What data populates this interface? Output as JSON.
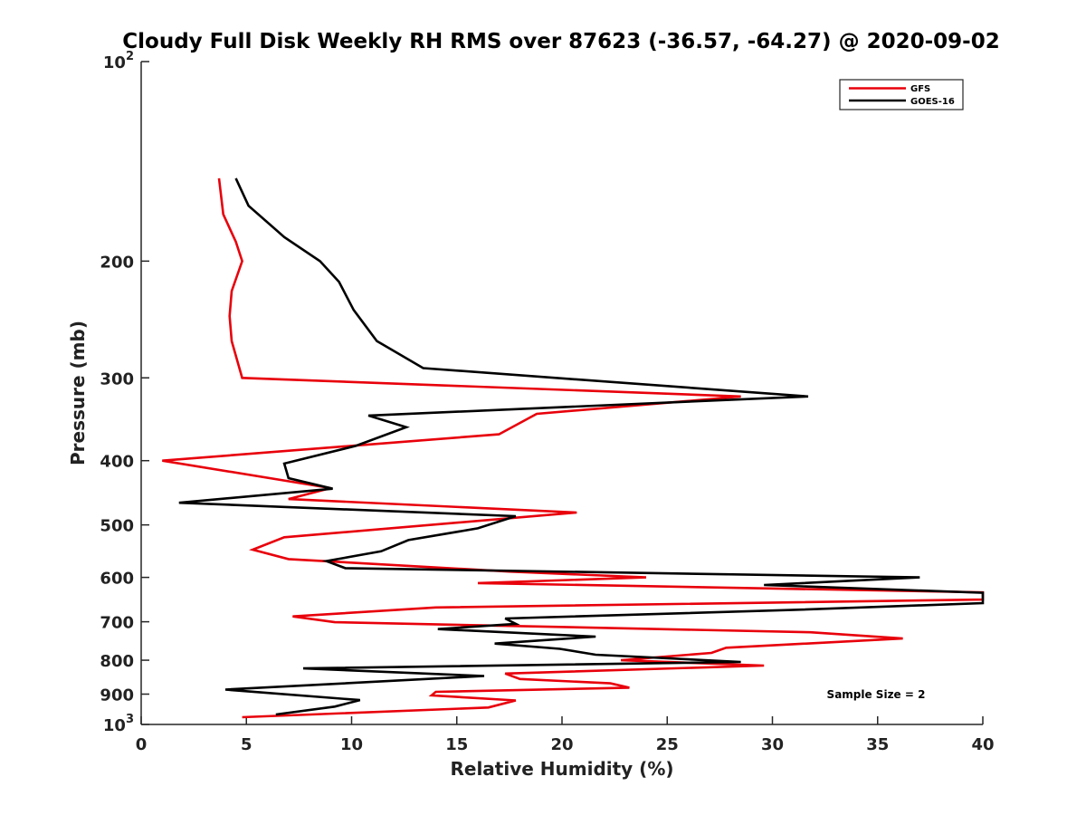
{
  "chart_data": {
    "type": "line",
    "title": "Cloudy Full Disk Weekly RH RMS over 87623 (-36.57, -64.27) @ 2020-09-02",
    "xlabel": "Relative Humidity (%)",
    "ylabel": "Pressure (mb)",
    "xlim": [
      0,
      40
    ],
    "ylim": [
      100,
      1000
    ],
    "y_scale": "log",
    "y_reversed": true,
    "grid": false,
    "legend_position": "top-right",
    "x_ticks": [
      0,
      5,
      10,
      15,
      20,
      25,
      30,
      35,
      40
    ],
    "x_tick_labels": [
      "0",
      "5",
      "10",
      "15",
      "20",
      "25",
      "30",
      "35",
      "40"
    ],
    "y_ticks": [
      100,
      200,
      300,
      400,
      500,
      600,
      700,
      800,
      900,
      1000
    ],
    "y_tick_labels": [
      {
        "base": "10",
        "exp": "2"
      },
      {
        "base": "200",
        "exp": ""
      },
      {
        "base": "300",
        "exp": ""
      },
      {
        "base": "400",
        "exp": ""
      },
      {
        "base": "500",
        "exp": ""
      },
      {
        "base": "600",
        "exp": ""
      },
      {
        "base": "700",
        "exp": ""
      },
      {
        "base": "800",
        "exp": ""
      },
      {
        "base": "900",
        "exp": ""
      },
      {
        "base": "10",
        "exp": "3"
      }
    ],
    "annotation": "Sample Size = 2",
    "series": [
      {
        "name": "GFS",
        "color": "#e8000b",
        "points": [
          [
            3.7,
            150
          ],
          [
            3.9,
            170
          ],
          [
            4.5,
            187
          ],
          [
            4.8,
            200
          ],
          [
            4.3,
            222
          ],
          [
            4.2,
            242
          ],
          [
            4.3,
            264
          ],
          [
            4.8,
            300
          ],
          [
            28.5,
            320
          ],
          [
            18.8,
            340
          ],
          [
            17.0,
            365
          ],
          [
            1.0,
            400
          ],
          [
            9.0,
            440
          ],
          [
            7.0,
            457
          ],
          [
            20.7,
            479
          ],
          [
            6.8,
            522
          ],
          [
            5.3,
            545
          ],
          [
            7.0,
            563
          ],
          [
            17.5,
            588
          ],
          [
            24.0,
            600
          ],
          [
            16.0,
            612
          ],
          [
            40.0,
            632
          ],
          [
            40.0,
            648
          ],
          [
            14.0,
            666
          ],
          [
            7.2,
            687
          ],
          [
            9.2,
            701
          ],
          [
            31.8,
            726
          ],
          [
            36.2,
            742
          ],
          [
            27.8,
            766
          ],
          [
            27.1,
            780
          ],
          [
            22.8,
            800
          ],
          [
            29.6,
            815
          ],
          [
            17.3,
            838
          ],
          [
            18.0,
            854
          ],
          [
            22.3,
            867
          ],
          [
            23.2,
            880
          ],
          [
            14.0,
            893
          ],
          [
            13.8,
            904
          ],
          [
            17.8,
            920
          ],
          [
            16.5,
            943
          ],
          [
            4.8,
            975
          ]
        ]
      },
      {
        "name": "GOES-16",
        "color": "#000000",
        "points": [
          [
            4.5,
            150
          ],
          [
            5.1,
            165
          ],
          [
            6.8,
            184
          ],
          [
            8.5,
            200
          ],
          [
            9.4,
            215
          ],
          [
            10.1,
            237
          ],
          [
            11.2,
            264
          ],
          [
            13.4,
            290
          ],
          [
            31.7,
            320
          ],
          [
            10.8,
            342
          ],
          [
            12.6,
            356
          ],
          [
            10.2,
            380
          ],
          [
            6.8,
            404
          ],
          [
            7.0,
            425
          ],
          [
            9.1,
            441
          ],
          [
            1.8,
            463
          ],
          [
            17.8,
            485
          ],
          [
            16.0,
            506
          ],
          [
            12.7,
            527
          ],
          [
            11.4,
            548
          ],
          [
            8.8,
            567
          ],
          [
            9.7,
            581
          ],
          [
            37.0,
            600
          ],
          [
            29.6,
            616
          ],
          [
            40.0,
            633
          ],
          [
            40.0,
            656
          ],
          [
            30.9,
            672
          ],
          [
            17.3,
            692
          ],
          [
            17.8,
            705
          ],
          [
            14.1,
            718
          ],
          [
            21.6,
            737
          ],
          [
            16.8,
            755
          ],
          [
            19.9,
            769
          ],
          [
            21.6,
            785
          ],
          [
            28.5,
            805
          ],
          [
            7.7,
            823
          ],
          [
            16.3,
            845
          ],
          [
            4.0,
            886
          ],
          [
            10.4,
            919
          ],
          [
            9.2,
            940
          ],
          [
            6.4,
            966
          ]
        ]
      }
    ]
  }
}
